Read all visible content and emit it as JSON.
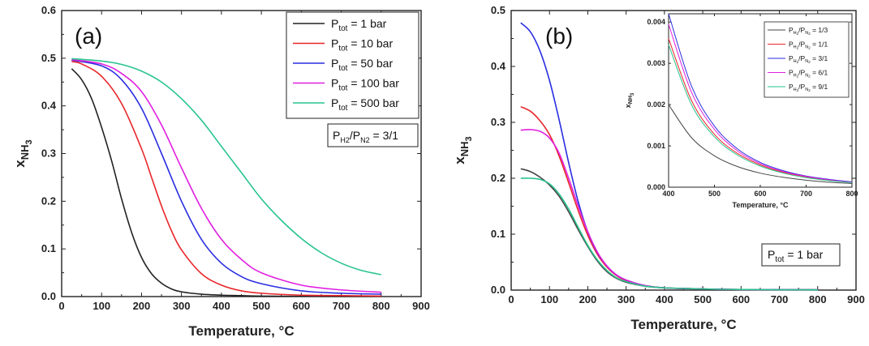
{
  "chart_data": [
    {
      "type": "line",
      "panel_label": "(a)",
      "xlabel": "Temperature, °C",
      "ylabel": "x",
      "ylabel_sub": "NH",
      "ylabel_sub2": "3",
      "xlim": [
        0,
        900
      ],
      "ylim": [
        0,
        0.6
      ],
      "xticks": [
        "0",
        "100",
        "200",
        "300",
        "400",
        "500",
        "600",
        "700",
        "800",
        "900"
      ],
      "yticks": [
        "0.0",
        "0.1",
        "0.2",
        "0.3",
        "0.4",
        "0.5",
        "0.6"
      ],
      "legend_position": "top-right",
      "annotation": {
        "p1": "P",
        "s1": "H2",
        "mid": "/P",
        "s2": "N2",
        "tail": " = 3/1"
      },
      "series": [
        {
          "name": "1 bar",
          "label_main": "P",
          "label_sub": "tot",
          "label_tail": " = 1 bar",
          "color": "#222222",
          "x": [
            25,
            50,
            75,
            100,
            125,
            150,
            175,
            200,
            225,
            250,
            275,
            300,
            350,
            400,
            450,
            500,
            600,
            700,
            800
          ],
          "y": [
            0.478,
            0.455,
            0.415,
            0.355,
            0.285,
            0.205,
            0.135,
            0.082,
            0.048,
            0.028,
            0.016,
            0.01,
            0.005,
            0.003,
            0.002,
            0.001,
            0.0005,
            0.0003,
            0.0002
          ]
        },
        {
          "name": "10 bar",
          "label_main": "P",
          "label_sub": "tot",
          "label_tail": " = 10 bar",
          "color": "#e8262a",
          "x": [
            25,
            50,
            100,
            150,
            200,
            225,
            250,
            275,
            300,
            350,
            400,
            450,
            500,
            600,
            700,
            800
          ],
          "y": [
            0.493,
            0.488,
            0.462,
            0.405,
            0.31,
            0.25,
            0.19,
            0.138,
            0.098,
            0.048,
            0.024,
            0.012,
            0.007,
            0.003,
            0.002,
            0.001
          ]
        },
        {
          "name": "50 bar",
          "label_main": "P",
          "label_sub": "tot",
          "label_tail": " = 50 bar",
          "color": "#2a2ee0",
          "x": [
            25,
            100,
            150,
            200,
            250,
            300,
            350,
            400,
            450,
            500,
            600,
            700,
            800
          ],
          "y": [
            0.496,
            0.484,
            0.455,
            0.395,
            0.3,
            0.2,
            0.12,
            0.07,
            0.042,
            0.027,
            0.012,
            0.007,
            0.005
          ]
        },
        {
          "name": "100 bar",
          "label_main": "P",
          "label_sub": "tot",
          "label_tail": " = 100 bar",
          "color": "#e020e0",
          "x": [
            25,
            100,
            150,
            200,
            250,
            300,
            350,
            400,
            450,
            500,
            600,
            700,
            800
          ],
          "y": [
            0.497,
            0.488,
            0.468,
            0.43,
            0.36,
            0.27,
            0.185,
            0.12,
            0.078,
            0.05,
            0.024,
            0.014,
            0.009
          ]
        },
        {
          "name": "500 bar",
          "label_main": "P",
          "label_sub": "tot",
          "label_tail": " = 500 bar",
          "color": "#28c48e",
          "x": [
            25,
            100,
            150,
            200,
            250,
            300,
            350,
            400,
            450,
            500,
            550,
            600,
            650,
            700,
            750,
            800
          ],
          "y": [
            0.499,
            0.494,
            0.487,
            0.473,
            0.45,
            0.415,
            0.37,
            0.315,
            0.26,
            0.205,
            0.16,
            0.122,
            0.092,
            0.07,
            0.055,
            0.046
          ]
        }
      ]
    },
    {
      "type": "line",
      "panel_label": "(b)",
      "xlabel": "Temperature, °C",
      "ylabel": "x",
      "ylabel_sub": "NH",
      "ylabel_sub2": "3",
      "xlim": [
        0,
        900
      ],
      "ylim": [
        0,
        0.5
      ],
      "xticks": [
        "0",
        "100",
        "200",
        "300",
        "400",
        "500",
        "600",
        "700",
        "800",
        "900"
      ],
      "yticks": [
        "0.0",
        "0.1",
        "0.2",
        "0.3",
        "0.4",
        "0.5"
      ],
      "annotation": {
        "p1": "P",
        "s1": "tot",
        "tail": " = 1 bar"
      },
      "series": [
        {
          "name": "1/3",
          "color": "#444444",
          "x": [
            25,
            50,
            75,
            100,
            125,
            150,
            175,
            200,
            225,
            250,
            275,
            300,
            350,
            400,
            450,
            500,
            600,
            700,
            800
          ],
          "y": [
            0.217,
            0.212,
            0.202,
            0.188,
            0.168,
            0.14,
            0.108,
            0.078,
            0.052,
            0.033,
            0.021,
            0.014,
            0.007,
            0.004,
            0.003,
            0.002,
            0.001,
            0.0007,
            0.0005
          ]
        },
        {
          "name": "1/1",
          "color": "#e8262a",
          "x": [
            25,
            50,
            75,
            100,
            125,
            150,
            175,
            200,
            225,
            250,
            275,
            300,
            350,
            400,
            450,
            500,
            600,
            700,
            800
          ],
          "y": [
            0.328,
            0.32,
            0.303,
            0.278,
            0.24,
            0.192,
            0.142,
            0.098,
            0.064,
            0.041,
            0.026,
            0.017,
            0.008,
            0.004,
            0.003,
            0.002,
            0.001,
            0.0007,
            0.0005
          ]
        },
        {
          "name": "3/1",
          "color": "#2a2ee0",
          "x": [
            25,
            50,
            75,
            100,
            125,
            150,
            175,
            200,
            225,
            250,
            275,
            300,
            350,
            400,
            450,
            500,
            600,
            700,
            800
          ],
          "y": [
            0.478,
            0.462,
            0.428,
            0.375,
            0.305,
            0.228,
            0.158,
            0.104,
            0.067,
            0.043,
            0.027,
            0.018,
            0.008,
            0.004,
            0.003,
            0.002,
            0.001,
            0.0007,
            0.0005
          ]
        },
        {
          "name": "6/1",
          "color": "#e020e0",
          "x": [
            25,
            50,
            75,
            100,
            125,
            150,
            175,
            200,
            225,
            250,
            275,
            300,
            350,
            400,
            450,
            500,
            600,
            700,
            800
          ],
          "y": [
            0.286,
            0.287,
            0.284,
            0.272,
            0.245,
            0.2,
            0.15,
            0.104,
            0.068,
            0.043,
            0.027,
            0.018,
            0.008,
            0.004,
            0.003,
            0.002,
            0.001,
            0.0007,
            0.0005
          ]
        },
        {
          "name": "9/1",
          "color": "#28c48e",
          "x": [
            25,
            50,
            75,
            100,
            125,
            150,
            175,
            200,
            225,
            250,
            275,
            300,
            350,
            400,
            450,
            500,
            600,
            700,
            800
          ],
          "y": [
            0.2,
            0.2,
            0.198,
            0.19,
            0.172,
            0.145,
            0.112,
            0.08,
            0.054,
            0.035,
            0.022,
            0.015,
            0.007,
            0.004,
            0.003,
            0.002,
            0.001,
            0.0007,
            0.0005
          ]
        }
      ],
      "inset": {
        "xlabel": "Temperature, °C",
        "ylabel": "x",
        "ylabel_sub": "NH",
        "ylabel_sub2": "3",
        "xlim": [
          400,
          800
        ],
        "ylim": [
          0,
          0.0042
        ],
        "xticks": [
          "400",
          "500",
          "600",
          "700",
          "800"
        ],
        "ytick_values": [
          0,
          0.001,
          0.002,
          0.003,
          0.004
        ],
        "yticks": [
          "0.000",
          "0.001",
          "0.002",
          "0.003",
          "0.004"
        ],
        "legend_position": "top-right",
        "legend_prefix": {
          "p1": "P",
          "s1": "H",
          "ss1": "2",
          "mid": "/P",
          "s2": "N",
          "ss2": "2"
        },
        "series": [
          {
            "name": "1/3",
            "label_tail": " = 1/3",
            "color": "#444444",
            "x": [
              400,
              450,
              500,
              550,
              600,
              650,
              700,
              750,
              800
            ],
            "y": [
              0.002,
              0.0012,
              0.00076,
              0.0005,
              0.00034,
              0.00024,
              0.00017,
              0.00012,
              9e-05
            ]
          },
          {
            "name": "1/1",
            "label_tail": " = 1/1",
            "color": "#e8262a",
            "x": [
              400,
              450,
              500,
              550,
              600,
              650,
              700,
              750,
              800
            ],
            "y": [
              0.0036,
              0.0021,
              0.00128,
              0.00082,
              0.00054,
              0.00036,
              0.00025,
              0.00017,
              0.00012
            ]
          },
          {
            "name": "3/1",
            "label_tail": " = 3/1",
            "color": "#2a2ee0",
            "x": [
              400,
              450,
              500,
              550,
              600,
              650,
              700,
              750,
              800
            ],
            "y": [
              0.0042,
              0.00245,
              0.00148,
              0.00093,
              0.0006,
              0.0004,
              0.00027,
              0.00019,
              0.00013
            ]
          },
          {
            "name": "6/1",
            "label_tail": " = 6/1",
            "color": "#e020e0",
            "x": [
              400,
              450,
              500,
              550,
              600,
              650,
              700,
              750,
              800
            ],
            "y": [
              0.00395,
              0.0023,
              0.0014,
              0.00088,
              0.00057,
              0.00038,
              0.00026,
              0.00018,
              0.00012
            ]
          },
          {
            "name": "9/1",
            "label_tail": " = 9/1",
            "color": "#28c48e",
            "x": [
              400,
              450,
              500,
              550,
              600,
              650,
              700,
              750,
              800
            ],
            "y": [
              0.00345,
              0.002,
              0.00122,
              0.00078,
              0.00051,
              0.00034,
              0.00023,
              0.00016,
              0.00011
            ]
          }
        ]
      }
    }
  ]
}
